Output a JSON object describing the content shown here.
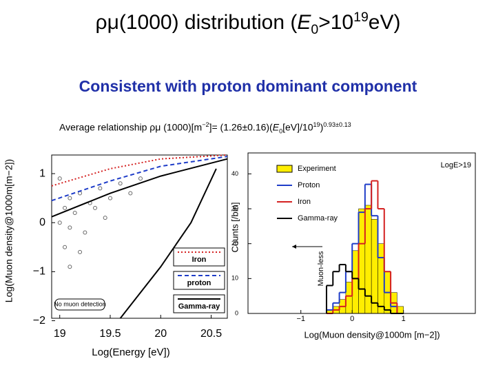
{
  "title": {
    "part1": "ρμ(1000) distribution (",
    "part2": "E",
    "part3": "0",
    "part4": ">10",
    "part5": "19",
    "part6": "eV)"
  },
  "subtitle": "Consistent with proton dominant component",
  "formula": {
    "prefix": "Average relationship ρμ (1000)[m",
    "exp1": "−2",
    "mid": "]= (1.26±0.16)(",
    "e": "E",
    "sub": "0",
    "mid2": "[eV]/10",
    "exp2": "19",
    "close": ")",
    "exp3": "0.93±0.13"
  },
  "chart_data": [
    {
      "type": "line",
      "x_label": "Log(Energy [eV])",
      "y_label": "Log(Muon density@1000m[m−2])",
      "xlim": [
        18.92,
        20.66
      ],
      "ylim": [
        -1.95,
        1.38
      ],
      "xticks": [
        19,
        19.5,
        20,
        20.5
      ],
      "yticks": [
        1,
        0,
        {
          "value": -1,
          "label": "−1"
        },
        {
          "value": -2,
          "label": "−2"
        }
      ],
      "annotation": "No muon detection",
      "series": [
        {
          "style": "markers",
          "color": "#666666",
          "x": [
            19.0,
            19.05,
            19.1,
            19.1,
            19.15,
            19.2,
            19.25,
            19.3,
            19.35,
            19.4,
            19.5,
            19.6,
            19.7,
            19.8,
            19.05,
            19.2,
            19.45,
            19.0,
            19.1
          ],
          "values": [
            0.0,
            0.3,
            -0.1,
            0.5,
            0.2,
            0.6,
            -0.2,
            0.4,
            0.3,
            0.7,
            0.5,
            0.8,
            0.6,
            0.9,
            -0.5,
            -0.6,
            0.1,
            0.9,
            -0.9
          ]
        },
        {
          "style": "solid",
          "color": "#000000",
          "x": [
            18.92,
            19.5,
            20.0,
            20.66
          ],
          "values": [
            0.12,
            0.6,
            0.95,
            1.3
          ]
        },
        {
          "name": "Iron",
          "style": "dotted",
          "color": "#d42020",
          "x": [
            18.92,
            19.5,
            20.0,
            20.66
          ],
          "values": [
            0.75,
            1.1,
            1.3,
            1.38
          ]
        },
        {
          "name": "proton",
          "style": "dashed",
          "color": "#1e3cc8",
          "x": [
            18.92,
            19.5,
            20.0,
            20.66
          ],
          "values": [
            0.45,
            0.85,
            1.15,
            1.35
          ]
        },
        {
          "name": "Gamma-ray",
          "style": "solid",
          "color": "#000000",
          "x": [
            19.6,
            20.0,
            20.3,
            20.55
          ],
          "values": [
            -1.95,
            -0.9,
            0.0,
            1.1
          ]
        }
      ]
    },
    {
      "type": "histogram",
      "x_label": "Log(Muon density@1000m [m−2])",
      "y_label": "Counts [/bin]",
      "xlim": [
        -2.03,
        2.4
      ],
      "ylim": [
        0,
        46
      ],
      "xticks": [
        {
          "value": -1,
          "label": "−1"
        },
        0,
        1
      ],
      "yticks": [
        0,
        10,
        20,
        30,
        40
      ],
      "annotations": [
        "LogE>19",
        "Muon-less"
      ],
      "bins": [
        -0.5,
        -0.375,
        -0.25,
        -0.125,
        0,
        0.125,
        0.25,
        0.375,
        0.5,
        0.625,
        0.75,
        0.875,
        1.0
      ],
      "series": [
        {
          "name": "Experiment",
          "color": "#ffee00",
          "values": [
            1,
            2,
            4,
            9,
            18,
            30,
            31,
            27,
            20,
            12,
            6,
            2
          ]
        },
        {
          "name": "Proton",
          "color": "#1e3cc8",
          "values": [
            1,
            3,
            6,
            12,
            20,
            29,
            37,
            28,
            16,
            6,
            2,
            0
          ]
        },
        {
          "name": "Iron",
          "color": "#d42020",
          "values": [
            0,
            1,
            2,
            5,
            10,
            20,
            30,
            38,
            30,
            12,
            3,
            0
          ]
        },
        {
          "name": "Gamma-ray",
          "color": "#000000",
          "values": [
            8,
            12,
            14,
            12,
            10,
            7,
            5,
            3,
            2,
            1,
            0,
            0
          ]
        }
      ]
    }
  ]
}
